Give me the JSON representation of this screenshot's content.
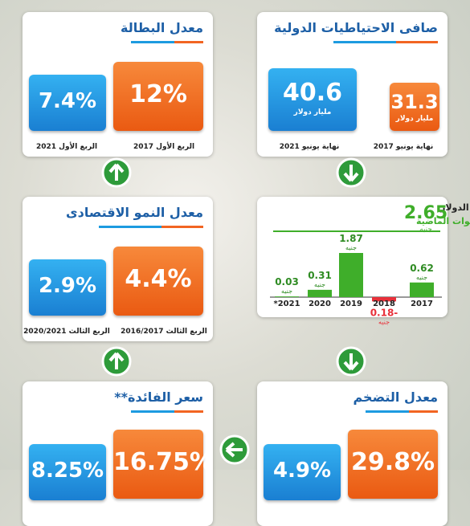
{
  "panels": [
    {
      "title": "صافى الاحتياطيات الدولية",
      "right": {
        "value": "31.3",
        "unit": "مليار دولار",
        "label": "نهاية يونيو 2017"
      },
      "left": {
        "value": "40.6",
        "unit": "مليار دولار",
        "label": "نهاية يونيو 2021"
      }
    },
    {
      "title": "معدل البطالة",
      "right": {
        "value": "12%",
        "label": "الربع الأول 2017"
      },
      "left": {
        "value": "7.4%",
        "label": "الربع الأول 2021"
      }
    },
    {
      "title": "معدل النمو الاقتصادى",
      "right": {
        "value": "4.4%",
        "label": "الربع الثالث 2016/2017"
      },
      "left": {
        "value": "2.9%",
        "label": "الربع الثالث 2020/2021"
      }
    },
    {
      "title": "معدل التضخم",
      "right": {
        "value": "29.8%"
      },
      "left": {
        "value": "4.9%"
      }
    },
    {
      "title": "سعر الفائدة**",
      "right": {
        "value": "16.75%"
      },
      "left": {
        "value": "8.25%"
      }
    }
  ],
  "chart_data": {
    "type": "bar",
    "title": "إجمالى مكاسب الجنيه أمام الدولار",
    "subtitle": "خلال السنوات الماضية",
    "total": "2.65",
    "unit": "جنيه",
    "categories": [
      "2017",
      "2018",
      "2019",
      "2020",
      "*2021"
    ],
    "values": [
      0.62,
      -0.18,
      1.87,
      0.31,
      0.03
    ],
    "value_labels": [
      "0.62",
      "0.18-",
      "1.87",
      "0.31",
      "0.03"
    ],
    "color": "#3fae2a",
    "negative_color": "#e8303a"
  }
}
